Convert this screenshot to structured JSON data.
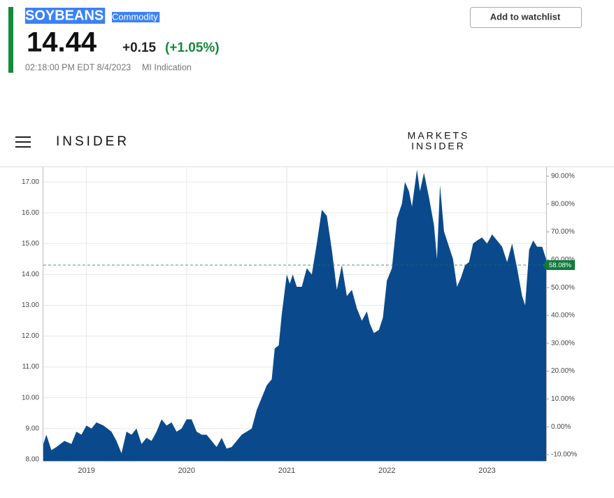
{
  "header": {
    "name": "SOYBEANS",
    "tag": "Commodity",
    "price": "14.44",
    "change": "+0.15",
    "change_pct": "(+1.05%)",
    "timestamp": "02:18:00 PM EDT 8/4/2023",
    "source": "MI Indication",
    "button": "Add to watchlist"
  },
  "nav": {
    "logo": "INSIDER",
    "brand_top": "MARKETS",
    "brand_bottom": "INSIDER"
  },
  "chart_data": {
    "type": "area",
    "color": "#0a4a8c",
    "grid": true,
    "x": [
      2018.57,
      2018.6,
      2018.65,
      2018.7,
      2018.78,
      2018.85,
      2018.9,
      2018.95,
      2019.0,
      2019.05,
      2019.1,
      2019.17,
      2019.25,
      2019.3,
      2019.35,
      2019.4,
      2019.45,
      2019.5,
      2019.55,
      2019.6,
      2019.65,
      2019.7,
      2019.75,
      2019.8,
      2019.85,
      2019.9,
      2019.95,
      2020.0,
      2020.05,
      2020.1,
      2020.15,
      2020.2,
      2020.25,
      2020.3,
      2020.35,
      2020.4,
      2020.45,
      2020.5,
      2020.55,
      2020.6,
      2020.65,
      2020.7,
      2020.75,
      2020.8,
      2020.85,
      2020.88,
      2020.92,
      2020.95,
      2021.0,
      2021.03,
      2021.06,
      2021.1,
      2021.15,
      2021.2,
      2021.25,
      2021.3,
      2021.35,
      2021.4,
      2021.45,
      2021.5,
      2021.55,
      2021.6,
      2021.65,
      2021.7,
      2021.75,
      2021.8,
      2021.83,
      2021.87,
      2021.92,
      2021.96,
      2022.0,
      2022.05,
      2022.1,
      2022.15,
      2022.18,
      2022.22,
      2022.25,
      2022.3,
      2022.33,
      2022.37,
      2022.42,
      2022.47,
      2022.5,
      2022.53,
      2022.57,
      2022.62,
      2022.66,
      2022.7,
      2022.74,
      2022.78,
      2022.82,
      2022.86,
      2022.9,
      2022.95,
      2023.0,
      2023.05,
      2023.1,
      2023.15,
      2023.2,
      2023.25,
      2023.3,
      2023.35,
      2023.38,
      2023.42,
      2023.46,
      2023.5,
      2023.55,
      2023.59
    ],
    "values": [
      8.5,
      8.8,
      8.3,
      8.4,
      8.6,
      8.5,
      8.9,
      8.8,
      9.1,
      9.0,
      9.2,
      9.1,
      8.9,
      8.6,
      8.2,
      8.9,
      8.8,
      9.0,
      8.5,
      8.7,
      8.6,
      8.9,
      9.3,
      9.1,
      9.2,
      8.9,
      9.0,
      9.3,
      9.3,
      8.9,
      8.8,
      8.8,
      8.6,
      8.4,
      8.7,
      8.35,
      8.4,
      8.6,
      8.8,
      8.9,
      9.0,
      9.6,
      10.0,
      10.4,
      10.6,
      11.6,
      11.7,
      12.7,
      14.0,
      13.7,
      14.0,
      13.6,
      13.6,
      14.2,
      14.0,
      15.0,
      16.1,
      15.9,
      14.8,
      13.5,
      14.3,
      13.3,
      13.5,
      12.9,
      12.5,
      12.8,
      12.4,
      12.1,
      12.2,
      12.6,
      13.8,
      14.2,
      15.8,
      16.3,
      17.0,
      16.7,
      16.2,
      17.4,
      16.7,
      17.3,
      16.5,
      15.6,
      14.5,
      16.9,
      15.4,
      14.9,
      14.5,
      13.6,
      13.9,
      14.3,
      14.4,
      15.0,
      15.1,
      15.2,
      15.0,
      15.3,
      15.1,
      14.9,
      14.4,
      15.0,
      14.2,
      13.3,
      13.0,
      14.8,
      15.1,
      14.9,
      14.9,
      14.5
    ],
    "xlim": [
      2018.57,
      2023.59
    ],
    "xticks": [
      2019,
      2020,
      2021,
      2022,
      2023
    ],
    "ylim": [
      7.95,
      17.48
    ],
    "yticks": [
      {
        "value": 8,
        "label": "8.00"
      },
      {
        "value": 9,
        "label": "9.00"
      },
      {
        "value": 10,
        "label": "10.00"
      },
      {
        "value": 11,
        "label": "11.00"
      },
      {
        "value": 12,
        "label": "12.00"
      },
      {
        "value": 13,
        "label": "13.00"
      },
      {
        "value": 14,
        "label": "14.00"
      },
      {
        "value": 15,
        "label": "15.00"
      },
      {
        "value": 16,
        "label": "16.00"
      },
      {
        "value": 17,
        "label": "17.00"
      }
    ],
    "y2lim": [
      -12.26,
      93.26
    ],
    "y2ticks": [
      {
        "value": -10,
        "label": "-10.00%"
      },
      {
        "value": 0,
        "label": "0.00%"
      },
      {
        "value": 10,
        "label": "10.00%"
      },
      {
        "value": 20,
        "label": "20.00%"
      },
      {
        "value": 30,
        "label": "30.00%"
      },
      {
        "value": 40,
        "label": "40.00%"
      },
      {
        "value": 50,
        "label": "50.00%"
      },
      {
        "value": 60,
        "label": "60.00%"
      },
      {
        "value": 70,
        "label": "70.00%"
      },
      {
        "value": 80,
        "label": "80.00%"
      },
      {
        "value": 90,
        "label": "90.00%"
      }
    ],
    "marker": {
      "value": 58.08,
      "label": "58.08%",
      "axis": "y2",
      "color": "#0f7b3c"
    }
  }
}
